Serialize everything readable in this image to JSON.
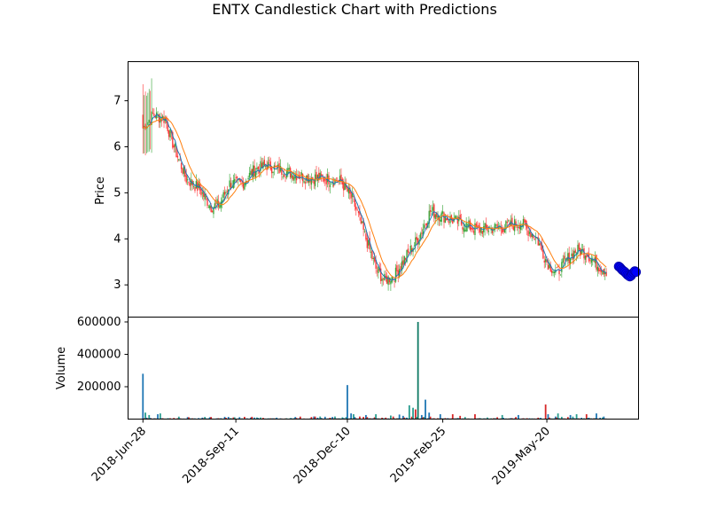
{
  "chart_data": {
    "type": "candlestick",
    "title": "ENTX Candlestick Chart with Predictions",
    "price_panel": {
      "ylabel": "Price",
      "ylim": [
        2.3,
        7.85
      ],
      "yticks": [
        3,
        4,
        5,
        6,
        7
      ]
    },
    "volume_panel": {
      "ylabel": "Volume",
      "ylim": [
        0,
        630000
      ],
      "yticks": [
        200000,
        400000,
        600000
      ]
    },
    "x_axis": {
      "xlim_days": [
        -12,
        400
      ],
      "ticks": [
        {
          "label": "2018-Jun-28",
          "day": 0
        },
        {
          "label": "2018-Sep-11",
          "day": 75
        },
        {
          "label": "2018-Dec-10",
          "day": 165
        },
        {
          "label": "2019-Feb-25",
          "day": 242
        },
        {
          "label": "2019-May-20",
          "day": 326
        }
      ]
    },
    "series": [
      {
        "name": "",
        "type": "moving_average",
        "color": "#1f77b4"
      },
      {
        "name": "",
        "type": "moving_average",
        "color": "#ff7f0e"
      },
      {
        "name": "",
        "type": "predictions",
        "color": "#0000ff"
      }
    ],
    "anchors": [
      [
        0,
        6.4
      ],
      [
        8,
        6.7
      ],
      [
        18,
        6.6
      ],
      [
        25,
        6.0
      ],
      [
        35,
        5.3
      ],
      [
        45,
        5.1
      ],
      [
        55,
        4.7
      ],
      [
        62,
        4.75
      ],
      [
        70,
        5.2
      ],
      [
        80,
        5.2
      ],
      [
        90,
        5.5
      ],
      [
        100,
        5.6
      ],
      [
        110,
        5.5
      ],
      [
        130,
        5.35
      ],
      [
        150,
        5.3
      ],
      [
        160,
        5.25
      ],
      [
        170,
        4.8
      ],
      [
        180,
        4.0
      ],
      [
        188,
        3.35
      ],
      [
        195,
        3.1
      ],
      [
        203,
        3.2
      ],
      [
        212,
        3.6
      ],
      [
        222,
        4.0
      ],
      [
        232,
        4.6
      ],
      [
        242,
        4.5
      ],
      [
        255,
        4.35
      ],
      [
        270,
        4.2
      ],
      [
        290,
        4.25
      ],
      [
        305,
        4.35
      ],
      [
        318,
        4.0
      ],
      [
        326,
        3.5
      ],
      [
        334,
        3.25
      ],
      [
        342,
        3.55
      ],
      [
        350,
        3.75
      ],
      [
        358,
        3.7
      ],
      [
        366,
        3.45
      ],
      [
        374,
        3.3
      ]
    ],
    "predictions": [
      [
        384,
        3.4
      ],
      [
        385,
        3.38
      ],
      [
        386,
        3.35
      ],
      [
        387,
        3.32
      ],
      [
        388,
        3.3
      ],
      [
        389,
        3.28
      ],
      [
        390,
        3.25
      ],
      [
        391,
        3.22
      ],
      [
        392,
        3.2
      ],
      [
        393,
        3.18
      ],
      [
        394,
        3.2
      ],
      [
        395,
        3.24
      ],
      [
        396,
        3.27
      ],
      [
        397,
        3.3
      ],
      [
        398,
        3.28
      ]
    ],
    "volume_spikes": [
      [
        0,
        280000
      ],
      [
        2,
        40000
      ],
      [
        5,
        25000
      ],
      [
        12,
        30000
      ],
      [
        14,
        35000
      ],
      [
        165,
        210000
      ],
      [
        168,
        35000
      ],
      [
        170,
        30000
      ],
      [
        180,
        25000
      ],
      [
        188,
        30000
      ],
      [
        200,
        22000
      ],
      [
        207,
        28000
      ],
      [
        210,
        20000
      ],
      [
        215,
        85000
      ],
      [
        218,
        70000
      ],
      [
        220,
        60000
      ],
      [
        222,
        600000
      ],
      [
        225,
        25000
      ],
      [
        228,
        120000
      ],
      [
        231,
        40000
      ],
      [
        240,
        30000
      ],
      [
        250,
        30000
      ],
      [
        256,
        20000
      ],
      [
        268,
        30000
      ],
      [
        290,
        25000
      ],
      [
        303,
        25000
      ],
      [
        325,
        90000
      ],
      [
        327,
        30000
      ],
      [
        335,
        35000
      ],
      [
        345,
        25000
      ],
      [
        350,
        30000
      ],
      [
        358,
        30000
      ],
      [
        366,
        35000
      ]
    ]
  }
}
